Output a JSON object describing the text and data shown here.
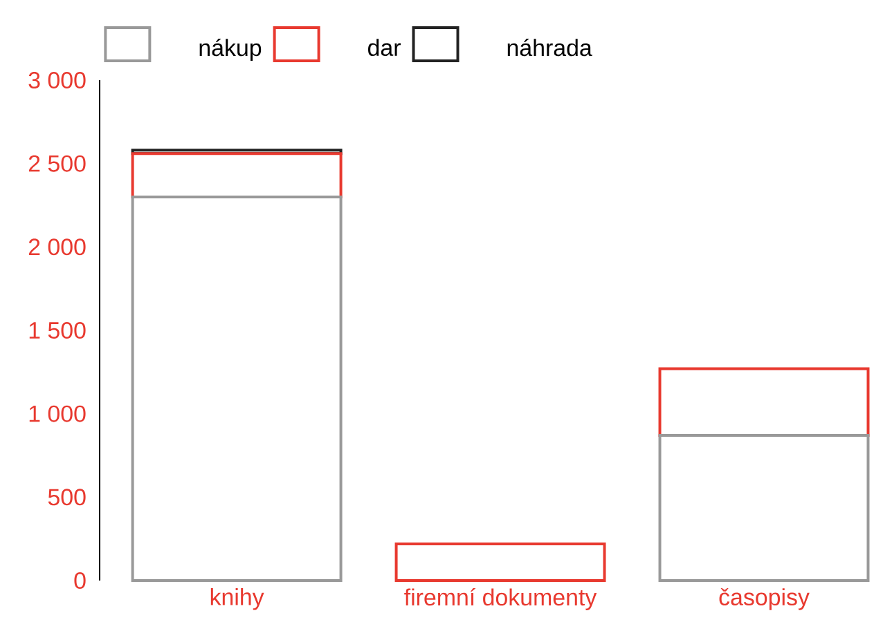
{
  "chart_data": {
    "type": "bar",
    "stacked": true,
    "categories": [
      "knihy",
      "firemní dokumenty",
      "časopisy"
    ],
    "series": [
      {
        "name": "nákup",
        "color": "#999999",
        "values": [
          2300,
          0,
          870
        ]
      },
      {
        "name": "dar",
        "color": "#e8392f",
        "values": [
          260,
          220,
          400
        ]
      },
      {
        "name": "náhrada",
        "color": "#222222",
        "values": [
          20,
          0,
          0
        ]
      }
    ],
    "ylim": [
      0,
      3000
    ],
    "yticks": [
      0,
      500,
      {
        "value": 1000,
        "label": "1 000"
      },
      {
        "value": 1500,
        "label": "1 500"
      },
      {
        "value": 2000,
        "label": "2 000"
      },
      {
        "value": 2500,
        "label": "2 500"
      },
      {
        "value": 3000,
        "label": "3 000"
      }
    ],
    "grid": false,
    "legend": "top"
  }
}
